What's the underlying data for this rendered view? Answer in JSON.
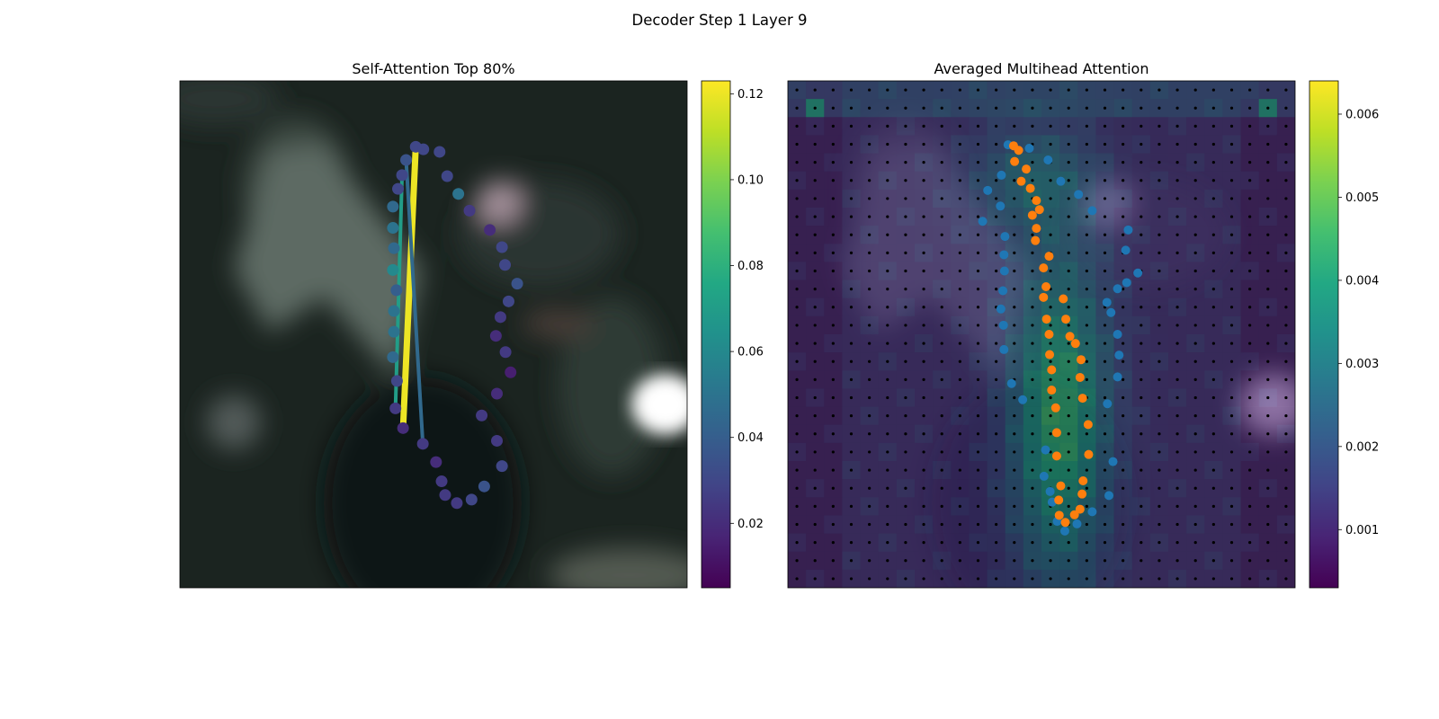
{
  "figure": {
    "title": "Decoder Step 1 Layer 9"
  },
  "chart_data": [
    {
      "type": "scatter",
      "title": "Self-Attention Top 80%",
      "background": "blurred dark photo of a person (image patch)",
      "colormap": "viridis",
      "colorbar": {
        "min": 0.005,
        "max": 0.123,
        "ticks": [
          0.02,
          0.04,
          0.06,
          0.08,
          0.1,
          0.12
        ],
        "tick_labels": [
          "0.02",
          "0.04",
          "0.06",
          "0.08",
          "0.10",
          "0.12"
        ]
      },
      "points_tl": [
        [
          0.465,
          0.13
        ],
        [
          0.446,
          0.156
        ],
        [
          0.438,
          0.186
        ],
        [
          0.43,
          0.213
        ],
        [
          0.42,
          0.248
        ],
        [
          0.42,
          0.29
        ],
        [
          0.422,
          0.33
        ],
        [
          0.42,
          0.373
        ],
        [
          0.427,
          0.413
        ],
        [
          0.422,
          0.454
        ],
        [
          0.422,
          0.495
        ],
        [
          0.42,
          0.545
        ],
        [
          0.428,
          0.592
        ],
        [
          0.425,
          0.646
        ],
        [
          0.44,
          0.685
        ],
        [
          0.479,
          0.716
        ],
        [
          0.505,
          0.752
        ],
        [
          0.516,
          0.79
        ],
        [
          0.523,
          0.817
        ],
        [
          0.546,
          0.833
        ],
        [
          0.575,
          0.826
        ],
        [
          0.6,
          0.8
        ],
        [
          0.635,
          0.76
        ],
        [
          0.625,
          0.71
        ],
        [
          0.595,
          0.66
        ],
        [
          0.625,
          0.617
        ],
        [
          0.652,
          0.575
        ],
        [
          0.642,
          0.535
        ],
        [
          0.623,
          0.503
        ],
        [
          0.632,
          0.466
        ],
        [
          0.648,
          0.435
        ],
        [
          0.665,
          0.4
        ],
        [
          0.641,
          0.363
        ],
        [
          0.635,
          0.328
        ],
        [
          0.611,
          0.294
        ],
        [
          0.571,
          0.256
        ],
        [
          0.549,
          0.223
        ],
        [
          0.527,
          0.188
        ],
        [
          0.512,
          0.14
        ],
        [
          0.48,
          0.135
        ]
      ],
      "point_values": [
        0.03,
        0.035,
        0.03,
        0.03,
        0.045,
        0.05,
        0.045,
        0.06,
        0.04,
        0.05,
        0.05,
        0.045,
        0.03,
        0.025,
        0.02,
        0.025,
        0.02,
        0.025,
        0.025,
        0.025,
        0.03,
        0.035,
        0.03,
        0.025,
        0.025,
        0.02,
        0.015,
        0.025,
        0.02,
        0.025,
        0.03,
        0.035,
        0.03,
        0.03,
        0.02,
        0.025,
        0.05,
        0.03,
        0.03,
        0.03
      ],
      "attention_lines": [
        {
          "from": 0,
          "to": 14,
          "value": 0.12
        },
        {
          "from": 2,
          "to": 13,
          "value": 0.07
        },
        {
          "from": 1,
          "to": 15,
          "value": 0.045
        }
      ]
    },
    {
      "type": "heatmap",
      "title": "Averaged Multihead Attention",
      "background": "blurred dark photo of a person (image patch)",
      "colormap": "viridis",
      "grid_size": 28,
      "colorbar": {
        "min": 0.0003,
        "max": 0.0064,
        "ticks": [
          0.001,
          0.002,
          0.003,
          0.004,
          0.005,
          0.006
        ],
        "tick_labels": [
          "0.001",
          "0.002",
          "0.003",
          "0.004",
          "0.005",
          "0.006"
        ]
      },
      "series": [
        {
          "color": "#1f77b4",
          "points": [
            [
              0.434,
              0.126
            ],
            [
              0.476,
              0.133
            ],
            [
              0.513,
              0.156
            ],
            [
              0.421,
              0.186
            ],
            [
              0.394,
              0.216
            ],
            [
              0.419,
              0.247
            ],
            [
              0.384,
              0.277
            ],
            [
              0.428,
              0.307
            ],
            [
              0.426,
              0.343
            ],
            [
              0.427,
              0.375
            ],
            [
              0.424,
              0.414
            ],
            [
              0.42,
              0.45
            ],
            [
              0.425,
              0.482
            ],
            [
              0.426,
              0.53
            ],
            [
              0.441,
              0.597
            ],
            [
              0.463,
              0.629
            ],
            [
              0.508,
              0.728
            ],
            [
              0.505,
              0.78
            ],
            [
              0.517,
              0.81
            ],
            [
              0.521,
              0.831
            ],
            [
              0.531,
              0.869
            ],
            [
              0.546,
              0.888
            ],
            [
              0.57,
              0.874
            ],
            [
              0.6,
              0.85
            ],
            [
              0.633,
              0.818
            ],
            [
              0.641,
              0.751
            ],
            [
              0.63,
              0.637
            ],
            [
              0.65,
              0.584
            ],
            [
              0.653,
              0.541
            ],
            [
              0.65,
              0.5
            ],
            [
              0.637,
              0.457
            ],
            [
              0.629,
              0.437
            ],
            [
              0.65,
              0.41
            ],
            [
              0.668,
              0.398
            ],
            [
              0.69,
              0.379
            ],
            [
              0.666,
              0.334
            ],
            [
              0.671,
              0.294
            ],
            [
              0.6,
              0.256
            ],
            [
              0.573,
              0.224
            ],
            [
              0.538,
              0.198
            ]
          ]
        },
        {
          "color": "#ff7f0e",
          "points": [
            [
              0.445,
              0.128
            ],
            [
              0.455,
              0.137
            ],
            [
              0.447,
              0.159
            ],
            [
              0.46,
              0.198
            ],
            [
              0.47,
              0.174
            ],
            [
              0.478,
              0.212
            ],
            [
              0.49,
              0.236
            ],
            [
              0.496,
              0.254
            ],
            [
              0.482,
              0.265
            ],
            [
              0.49,
              0.291
            ],
            [
              0.488,
              0.315
            ],
            [
              0.515,
              0.346
            ],
            [
              0.504,
              0.369
            ],
            [
              0.509,
              0.406
            ],
            [
              0.504,
              0.427
            ],
            [
              0.543,
              0.43
            ],
            [
              0.548,
              0.47
            ],
            [
              0.556,
              0.504
            ],
            [
              0.567,
              0.518
            ],
            [
              0.578,
              0.55
            ],
            [
              0.576,
              0.585
            ],
            [
              0.581,
              0.626
            ],
            [
              0.592,
              0.678
            ],
            [
              0.593,
              0.737
            ],
            [
              0.582,
              0.789
            ],
            [
              0.58,
              0.815
            ],
            [
              0.576,
              0.845
            ],
            [
              0.565,
              0.856
            ],
            [
              0.547,
              0.871
            ],
            [
              0.535,
              0.857
            ],
            [
              0.534,
              0.827
            ],
            [
              0.538,
              0.799
            ],
            [
              0.53,
              0.74
            ],
            [
              0.53,
              0.694
            ],
            [
              0.528,
              0.645
            ],
            [
              0.52,
              0.61
            ],
            [
              0.52,
              0.57
            ],
            [
              0.516,
              0.54
            ],
            [
              0.515,
              0.5
            ],
            [
              0.51,
              0.47
            ]
          ]
        }
      ]
    }
  ]
}
